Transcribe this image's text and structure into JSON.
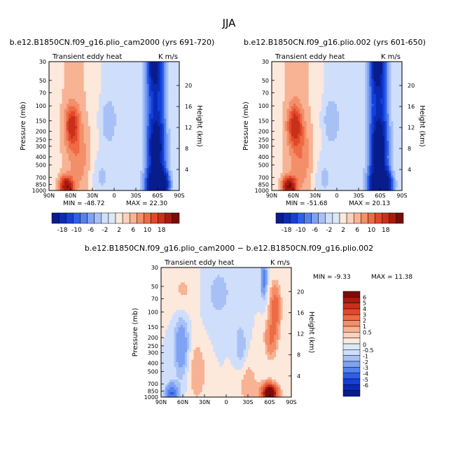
{
  "season": "JJA",
  "colors": {
    "blue": [
      "#081c8c",
      "#0b2ab5",
      "#1340d8",
      "#2f5fe8",
      "#5581ef",
      "#7fa2f3",
      "#a7c1f6",
      "#cfdefa"
    ],
    "neutral_blue": "#dbe8fb",
    "neutral_orange": "#fde8dc",
    "red": [
      "#f9d1bd",
      "#f7b393",
      "#f38f69",
      "#ee6b45",
      "#e2482a",
      "#c9301c",
      "#a81b0f",
      "#7a0d06"
    ]
  },
  "chart_data": [
    {
      "type": "heatmap",
      "title": "b.e12.B1850CN.f09_g16.plio_cam2000 (yrs 691-720)",
      "left_label": "Transient eddy heat",
      "right_label": "K m/s",
      "ylabel": "Pressure (mb)",
      "ylabel_right": "Height (km)",
      "x_ticks": [
        "90N",
        "60N",
        "30N",
        "0",
        "30S",
        "60S",
        "90S"
      ],
      "y_ticks": [
        "30",
        "50",
        "70",
        "100",
        "150",
        "200",
        "250",
        "300",
        "400",
        "500",
        "700",
        "850",
        "1000"
      ],
      "height_ticks": [
        "4",
        "8",
        "12",
        "16",
        "20"
      ],
      "y_scale": "log",
      "min_label": "MIN = -48.72",
      "max_label": "MAX = 22.30",
      "colorbar_labels": [
        "-18",
        "-10",
        "-6",
        "-2",
        "2",
        "6",
        "10",
        "18"
      ],
      "features": [
        {
          "lat": -65,
          "p": 850,
          "value": -40
        },
        {
          "lat": -60,
          "p": 350,
          "value": -30
        },
        {
          "lat": -55,
          "p": 30,
          "value": -20
        },
        {
          "lat": 60,
          "p": 150,
          "value": 12
        },
        {
          "lat": 65,
          "p": 900,
          "value": 18
        }
      ]
    },
    {
      "type": "heatmap",
      "title": "b.e12.B1850CN.f09_g16.plio.002 (yrs 601-650)",
      "left_label": "Transient eddy heat",
      "right_label": "K m/s",
      "ylabel": "Pressure (mb)",
      "ylabel_right": "Height (km)",
      "x_ticks": [
        "90N",
        "60N",
        "30N",
        "0",
        "30S",
        "60S",
        "90S"
      ],
      "y_ticks": [
        "30",
        "50",
        "70",
        "100",
        "150",
        "200",
        "250",
        "300",
        "400",
        "500",
        "700",
        "850",
        "1000"
      ],
      "height_ticks": [
        "4",
        "8",
        "12",
        "16",
        "20"
      ],
      "y_scale": "log",
      "min_label": "MIN = -51.68",
      "max_label": "MAX = 20.13",
      "colorbar_labels": [
        "-18",
        "-10",
        "-6",
        "-2",
        "2",
        "6",
        "10",
        "18"
      ],
      "features": [
        {
          "lat": -65,
          "p": 850,
          "value": -42
        },
        {
          "lat": -60,
          "p": 350,
          "value": -32
        },
        {
          "lat": -55,
          "p": 30,
          "value": -22
        },
        {
          "lat": 60,
          "p": 150,
          "value": 11
        },
        {
          "lat": 65,
          "p": 900,
          "value": 19
        }
      ]
    },
    {
      "type": "heatmap",
      "title": "b.e12.B1850CN.f09_g16.plio_cam2000 − b.e12.B1850CN.f09_g16.plio.002",
      "left_label": "Transient eddy heat",
      "right_label": "K m/s",
      "ylabel": "Pressure (mb)",
      "ylabel_right": "Height (km)",
      "x_ticks": [
        "90N",
        "60N",
        "30N",
        "0",
        "30S",
        "60S",
        "90S"
      ],
      "y_ticks": [
        "30",
        "50",
        "70",
        "100",
        "150",
        "200",
        "250",
        "300",
        "400",
        "500",
        "700",
        "850",
        "1000"
      ],
      "height_ticks": [
        "4",
        "8",
        "12",
        "16",
        "20"
      ],
      "y_scale": "log",
      "min_label": "MIN = -9.33",
      "max_label": "MAX = 11.38",
      "colorbar_labels": [
        "6",
        "5",
        "4",
        "3",
        "2",
        "1",
        "0.5",
        "0",
        "-0.5",
        "-1",
        "-2",
        "-3",
        "-4",
        "-5",
        "-6"
      ],
      "features": [
        {
          "lat": -62,
          "p": 900,
          "value": 9
        },
        {
          "lat": -65,
          "p": 50,
          "value": 2.5
        },
        {
          "lat": -60,
          "p": 150,
          "value": 2
        },
        {
          "lat": 75,
          "p": 900,
          "value": -3
        },
        {
          "lat": 60,
          "p": 250,
          "value": -1.5
        },
        {
          "lat": -50,
          "p": 40,
          "value": -2
        }
      ]
    }
  ]
}
